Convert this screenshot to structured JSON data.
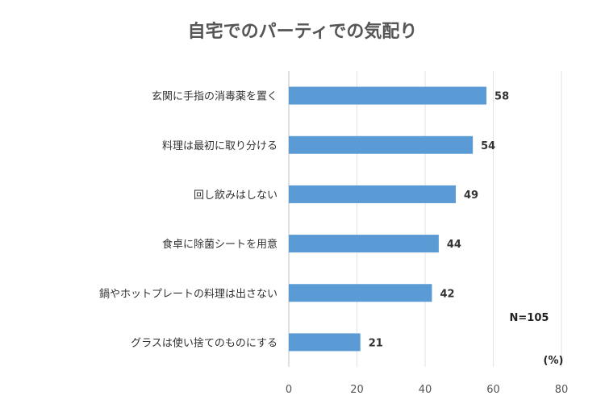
{
  "chart_data": {
    "type": "bar",
    "orientation": "horizontal",
    "title": "自宅でのパーティでの気配り",
    "categories": [
      "玄関に手指の消毒薬を置く",
      "料理は最初に取り分ける",
      "回し飲みはしない",
      "食卓に除菌シートを用意",
      "鍋やホットプレートの料理は出さない",
      "グラスは使い捨てのものにする"
    ],
    "values": [
      58,
      54,
      49,
      44,
      42,
      21
    ],
    "xlim": [
      0,
      80
    ],
    "xticks": [
      "0",
      "20",
      "40",
      "60",
      "80"
    ],
    "unit_label": "(%)",
    "sample_size": "N=105",
    "bar_color": "#5b9bd5",
    "grid": true
  }
}
